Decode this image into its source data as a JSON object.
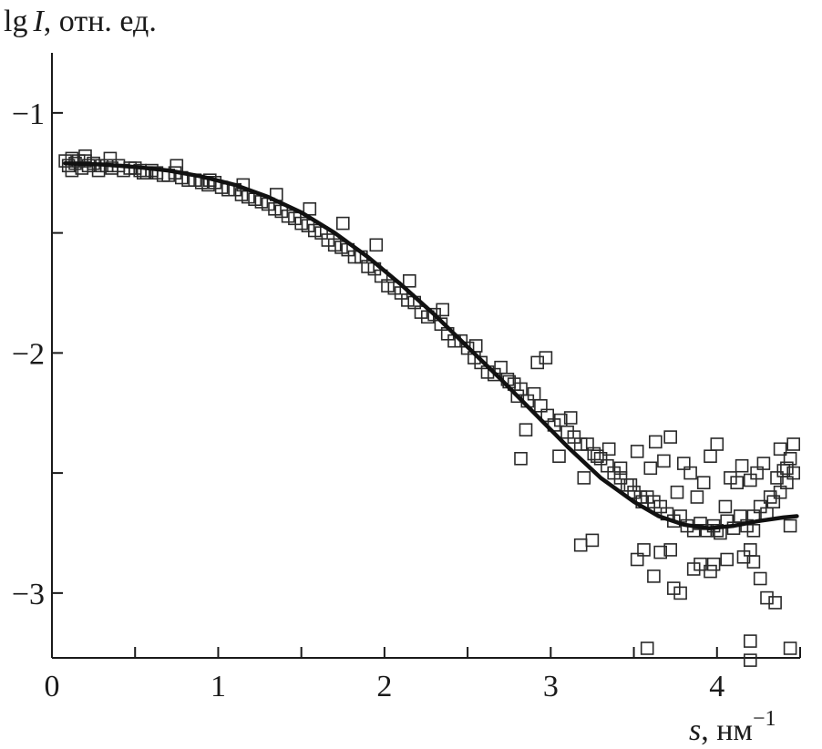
{
  "chart_data": {
    "type": "scatter",
    "ylabel_prefix": "lg",
    "ylabel_var": "I",
    "ylabel_rest": ", отн. ед.",
    "xlabel_var": "s",
    "xlabel_rest": ", нм",
    "xlabel_exp": "−1",
    "xlim": [
      0,
      4.5
    ],
    "ylim": [
      -3.27,
      -0.75
    ],
    "x_ticks_labeled": [
      {
        "value": 0,
        "label": "0"
      },
      {
        "value": 1,
        "label": "1"
      },
      {
        "value": 2,
        "label": "2"
      },
      {
        "value": 3,
        "label": "3"
      },
      {
        "value": 4,
        "label": "4"
      }
    ],
    "x_ticks_minor": [
      0.5,
      1.5,
      2.5,
      3.5,
      4.5
    ],
    "y_ticks_labeled": [
      {
        "value": -1,
        "label": "−1"
      },
      {
        "value": -2,
        "label": "−2"
      },
      {
        "value": -3,
        "label": "−3"
      }
    ],
    "y_ticks_minor": [
      -1.5,
      -2.5
    ],
    "grid": false,
    "series": [
      {
        "kind": "points",
        "marker": "open-square",
        "x": [
          0.08,
          0.1,
          0.12,
          0.14,
          0.16,
          0.18,
          0.2,
          0.22,
          0.25,
          0.28,
          0.3,
          0.33,
          0.36,
          0.4,
          0.43,
          0.47,
          0.5,
          0.53,
          0.57,
          0.6,
          0.63,
          0.67,
          0.7,
          0.74,
          0.78,
          0.82,
          0.86,
          0.9,
          0.94,
          0.98,
          1.02,
          1.06,
          1.1,
          1.14,
          1.18,
          1.22,
          1.26,
          1.3,
          1.34,
          1.38,
          1.42,
          1.46,
          1.5,
          1.54,
          1.58,
          1.62,
          1.66,
          1.7,
          1.74,
          1.78,
          1.82,
          1.86,
          1.9,
          1.94,
          1.98,
          2.02,
          2.06,
          2.1,
          2.14,
          2.18,
          2.22,
          2.26,
          2.3,
          2.34,
          2.38,
          2.42,
          2.46,
          2.5,
          2.54,
          2.58,
          2.62,
          2.66,
          2.7,
          2.74,
          2.78,
          2.82,
          2.86,
          2.9,
          2.94,
          2.98,
          3.02,
          3.06,
          3.1,
          3.14,
          3.18,
          3.22,
          3.26,
          3.3,
          3.34,
          3.38,
          3.42,
          3.46,
          3.5,
          3.54,
          3.58,
          3.62,
          3.66,
          3.7,
          3.74,
          3.78,
          3.82,
          3.86,
          3.9,
          3.94,
          3.98,
          4.02,
          4.06,
          4.1,
          4.14,
          4.18,
          4.22,
          4.26,
          4.3,
          4.34,
          4.38,
          4.42,
          4.46,
          0.12,
          0.2,
          0.35,
          0.55,
          0.75,
          0.95,
          1.15,
          1.35,
          1.55,
          1.75,
          1.95,
          2.15,
          2.35,
          2.55,
          2.75,
          2.8,
          2.85,
          2.92,
          2.97,
          3.05,
          3.12,
          3.2,
          3.28,
          3.35,
          3.42,
          3.48,
          3.52,
          3.55,
          3.6,
          3.63,
          3.68,
          3.72,
          3.76,
          3.8,
          3.84,
          3.88,
          3.92,
          3.96,
          4.0,
          4.05,
          4.08,
          4.12,
          4.15,
          4.2,
          4.24,
          4.28,
          4.32,
          4.36,
          4.4,
          4.44,
          3.18,
          3.25,
          3.52,
          3.66,
          3.72,
          3.86,
          4.2,
          4.22,
          4.3,
          4.35,
          4.2,
          4.2,
          4.44,
          3.58,
          4.22,
          4.44,
          2.82,
          3.74,
          3.96,
          4.0,
          4.06,
          4.16,
          4.26,
          4.38,
          4.42,
          4.46,
          3.56,
          3.62,
          3.78,
          3.9,
          3.98
        ],
        "y": [
          -1.2,
          -1.22,
          -1.19,
          -1.21,
          -1.2,
          -1.23,
          -1.2,
          -1.22,
          -1.21,
          -1.24,
          -1.22,
          -1.22,
          -1.23,
          -1.22,
          -1.24,
          -1.23,
          -1.23,
          -1.24,
          -1.25,
          -1.24,
          -1.25,
          -1.26,
          -1.26,
          -1.25,
          -1.27,
          -1.28,
          -1.28,
          -1.29,
          -1.3,
          -1.29,
          -1.31,
          -1.32,
          -1.32,
          -1.34,
          -1.35,
          -1.36,
          -1.37,
          -1.38,
          -1.4,
          -1.41,
          -1.43,
          -1.44,
          -1.46,
          -1.47,
          -1.49,
          -1.5,
          -1.53,
          -1.55,
          -1.56,
          -1.57,
          -1.6,
          -1.6,
          -1.64,
          -1.65,
          -1.68,
          -1.72,
          -1.73,
          -1.75,
          -1.78,
          -1.79,
          -1.83,
          -1.85,
          -1.84,
          -1.88,
          -1.92,
          -1.95,
          -1.95,
          -1.98,
          -2.02,
          -2.04,
          -2.08,
          -2.09,
          -2.06,
          -2.11,
          -2.13,
          -2.15,
          -2.2,
          -2.17,
          -2.22,
          -2.26,
          -2.3,
          -2.28,
          -2.33,
          -2.35,
          -2.38,
          -2.38,
          -2.42,
          -2.44,
          -2.47,
          -2.5,
          -2.52,
          -2.55,
          -2.58,
          -2.6,
          -2.6,
          -2.62,
          -2.64,
          -2.67,
          -2.7,
          -2.68,
          -2.72,
          -2.74,
          -2.71,
          -2.74,
          -2.72,
          -2.75,
          -2.7,
          -2.73,
          -2.68,
          -2.72,
          -2.68,
          -2.64,
          -2.67,
          -2.62,
          -2.58,
          -2.54,
          -2.5,
          -1.24,
          -1.18,
          -1.19,
          -1.25,
          -1.22,
          -1.28,
          -1.3,
          -1.34,
          -1.4,
          -1.46,
          -1.55,
          -1.7,
          -1.82,
          -1.97,
          -2.12,
          -2.18,
          -2.32,
          -2.04,
          -2.02,
          -2.43,
          -2.27,
          -2.52,
          -2.43,
          -2.4,
          -2.48,
          -2.55,
          -2.41,
          -2.62,
          -2.48,
          -2.37,
          -2.45,
          -2.35,
          -2.58,
          -2.46,
          -2.5,
          -2.6,
          -2.54,
          -2.43,
          -2.38,
          -2.64,
          -2.52,
          -2.54,
          -2.47,
          -2.53,
          -2.5,
          -2.46,
          -2.6,
          -2.52,
          -2.49,
          -2.44,
          -2.8,
          -2.78,
          -2.86,
          -2.83,
          -2.82,
          -2.9,
          -2.82,
          -2.87,
          -3.02,
          -3.04,
          -3.2,
          -3.28,
          -3.23,
          -3.23,
          -2.74,
          -2.72,
          -2.44,
          -2.98,
          -2.91,
          -2.74,
          -2.86,
          -2.85,
          -2.94,
          -2.4,
          -2.48,
          -2.38,
          -2.82,
          -2.93,
          -3.0,
          -2.88,
          -2.88
        ],
        "jitter_note": ""
      },
      {
        "kind": "line",
        "x": [
          0.08,
          0.3,
          0.5,
          0.7,
          0.9,
          1.1,
          1.3,
          1.5,
          1.7,
          1.9,
          2.1,
          2.3,
          2.5,
          2.7,
          2.9,
          3.1,
          3.3,
          3.5,
          3.65,
          3.8,
          3.95,
          4.1,
          4.25,
          4.4,
          4.48
        ],
        "y": [
          -1.21,
          -1.215,
          -1.225,
          -1.24,
          -1.265,
          -1.3,
          -1.35,
          -1.415,
          -1.5,
          -1.6,
          -1.715,
          -1.84,
          -1.975,
          -2.11,
          -2.25,
          -2.39,
          -2.52,
          -2.62,
          -2.68,
          -2.715,
          -2.73,
          -2.72,
          -2.7,
          -2.685,
          -2.68
        ]
      }
    ]
  }
}
